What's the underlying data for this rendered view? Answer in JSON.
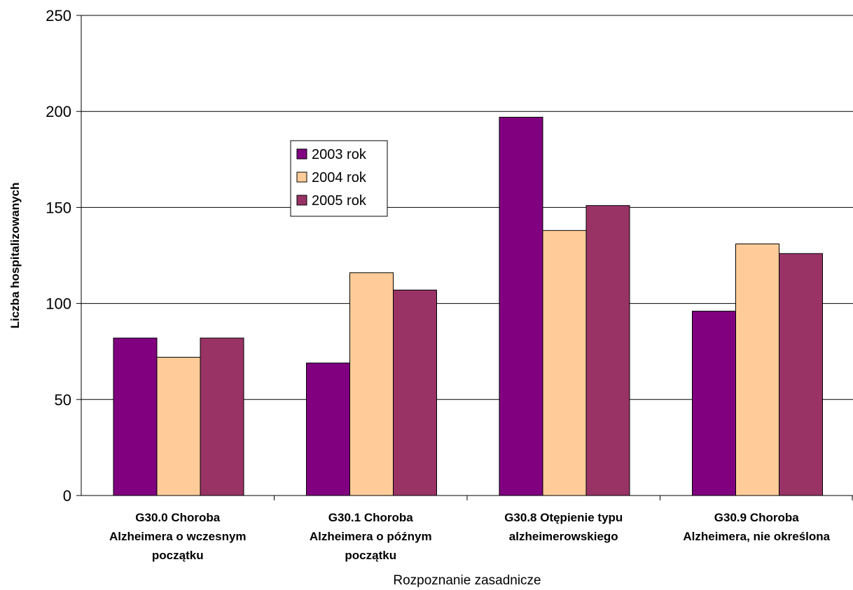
{
  "chart_data": {
    "type": "bar",
    "ylabel": "Liczba hospitalizowanych",
    "xlabel": "Rozpoznanie zasadnicze",
    "ylim": [
      0,
      250
    ],
    "yticks": [
      0,
      50,
      100,
      150,
      200,
      250
    ],
    "grid": true,
    "legend_position": "center-left",
    "categories": [
      [
        "G30.0  Choroba",
        "Alzheimera o wczesnym",
        "początku"
      ],
      [
        "G30.1  Choroba",
        "Alzheimera o późnym",
        "początku"
      ],
      [
        "G30.8  Otępienie typu",
        "alzheimerowskiego"
      ],
      [
        "G30.9  Choroba",
        "Alzheimera, nie określona"
      ]
    ],
    "series": [
      {
        "name": "2003 rok",
        "color": "#800080",
        "values": [
          82,
          69,
          197,
          96
        ]
      },
      {
        "name": "2004 rok",
        "color": "#FFCC99",
        "values": [
          72,
          116,
          138,
          131
        ]
      },
      {
        "name": "2005 rok",
        "color": "#993366",
        "values": [
          82,
          107,
          151,
          126
        ]
      }
    ]
  }
}
